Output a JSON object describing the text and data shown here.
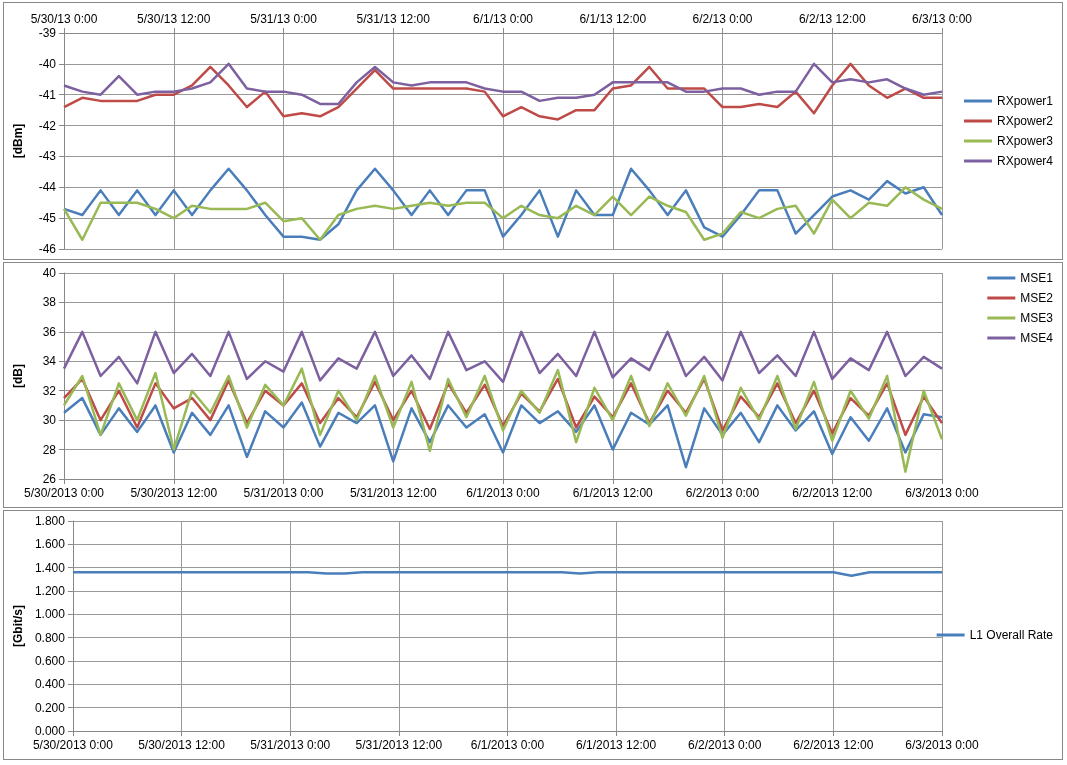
{
  "chart_data": [
    {
      "type": "line",
      "ylabel": "[dBm]",
      "legend": "right",
      "grid": true,
      "x": [
        "2013-05-30T00:00",
        "2013-05-30T02:00",
        "2013-05-30T04:00",
        "2013-05-30T06:00",
        "2013-05-30T08:00",
        "2013-05-30T10:00",
        "2013-05-30T12:00",
        "2013-05-30T14:00",
        "2013-05-30T16:00",
        "2013-05-30T18:00",
        "2013-05-30T20:00",
        "2013-05-30T22:00",
        "2013-05-31T00:00",
        "2013-05-31T02:00",
        "2013-05-31T04:00",
        "2013-05-31T06:00",
        "2013-05-31T08:00",
        "2013-05-31T10:00",
        "2013-05-31T12:00",
        "2013-05-31T14:00",
        "2013-05-31T16:00",
        "2013-05-31T18:00",
        "2013-05-31T20:00",
        "2013-05-31T22:00",
        "2013-06-01T00:00",
        "2013-06-01T02:00",
        "2013-06-01T04:00",
        "2013-06-01T06:00",
        "2013-06-01T08:00",
        "2013-06-01T10:00",
        "2013-06-01T12:00",
        "2013-06-01T14:00",
        "2013-06-01T16:00",
        "2013-06-01T18:00",
        "2013-06-01T20:00",
        "2013-06-01T22:00",
        "2013-06-02T00:00",
        "2013-06-02T02:00",
        "2013-06-02T04:00",
        "2013-06-02T06:00",
        "2013-06-02T08:00",
        "2013-06-02T10:00",
        "2013-06-02T12:00",
        "2013-06-02T14:00",
        "2013-06-02T16:00",
        "2013-06-02T18:00",
        "2013-06-02T20:00",
        "2013-06-02T22:00",
        "2013-06-03T00:00"
      ],
      "x2lim": [
        "2013-05-30T00:00",
        "2013-06-03T00:00"
      ],
      "x2ticks": [
        {
          "value": "2013-05-30T00:00",
          "label": "5/30/13 0:00"
        },
        {
          "value": "2013-05-30T12:00",
          "label": "5/30/13 12:00"
        },
        {
          "value": "2013-05-31T00:00",
          "label": "5/31/13 0:00"
        },
        {
          "value": "2013-05-31T12:00",
          "label": "5/31/13 12:00"
        },
        {
          "value": "2013-06-01T00:00",
          "label": "6/1/13 0:00"
        },
        {
          "value": "2013-06-01T12:00",
          "label": "6/1/13 12:00"
        },
        {
          "value": "2013-06-02T00:00",
          "label": "6/2/13 0:00"
        },
        {
          "value": "2013-06-02T12:00",
          "label": "6/2/13 12:00"
        },
        {
          "value": "2013-06-03T00:00",
          "label": "6/3/13 0:00"
        }
      ],
      "ylim": [
        -46,
        -39
      ],
      "yticks": [
        -46,
        -45,
        -44,
        -43,
        -42,
        -41,
        -40,
        -39
      ],
      "series": [
        {
          "name": "RXpower1",
          "axis": "x2",
          "color": "#4a7ebb",
          "values": [
            -44.7,
            -44.9,
            -44.1,
            -44.9,
            -44.1,
            -44.9,
            -44.1,
            -44.9,
            -44.1,
            -43.4,
            -44.1,
            -44.9,
            -45.6,
            -45.6,
            -45.7,
            -45.2,
            -44.1,
            -43.4,
            -44.1,
            -44.9,
            -44.1,
            -44.9,
            -44.1,
            -44.1,
            -45.6,
            -44.9,
            -44.1,
            -45.6,
            -44.1,
            -44.9,
            -44.9,
            -43.4,
            -44.1,
            -44.9,
            -44.1,
            -45.3,
            -45.6,
            -44.9,
            -44.1,
            -44.1,
            -45.5,
            -44.9,
            -44.3,
            -44.1,
            -44.4,
            -43.8,
            -44.2,
            -44.0,
            -44.9
          ]
        },
        {
          "name": "RXpower2",
          "axis": "x2",
          "color": "#be4b48",
          "values": [
            -41.4,
            -41.1,
            -41.2,
            -41.2,
            -41.2,
            -41.0,
            -41.0,
            -40.7,
            -40.1,
            -40.7,
            -41.4,
            -40.9,
            -41.7,
            -41.6,
            -41.7,
            -41.4,
            -40.8,
            -40.2,
            -40.8,
            -40.8,
            -40.8,
            -40.8,
            -40.8,
            -40.9,
            -41.7,
            -41.4,
            -41.7,
            -41.8,
            -41.5,
            -41.5,
            -40.8,
            -40.7,
            -40.1,
            -40.8,
            -40.8,
            -40.8,
            -41.4,
            -41.4,
            -41.3,
            -41.4,
            -40.9,
            -41.6,
            -40.7,
            -40.0,
            -40.7,
            -41.1,
            -40.8,
            -41.1,
            -41.1
          ]
        },
        {
          "name": "RXpower3",
          "axis": "x2",
          "color": "#98b954",
          "values": [
            -44.7,
            -45.7,
            -44.5,
            -44.5,
            -44.5,
            -44.7,
            -45.0,
            -44.6,
            -44.7,
            -44.7,
            -44.7,
            -44.5,
            -45.1,
            -45.0,
            -45.7,
            -44.9,
            -44.7,
            -44.6,
            -44.7,
            -44.6,
            -44.5,
            -44.6,
            -44.5,
            -44.5,
            -45.0,
            -44.6,
            -44.9,
            -45.0,
            -44.6,
            -44.9,
            -44.3,
            -44.9,
            -44.3,
            -44.6,
            -44.8,
            -45.7,
            -45.5,
            -44.8,
            -45.0,
            -44.7,
            -44.6,
            -45.5,
            -44.4,
            -45.0,
            -44.5,
            -44.6,
            -44.0,
            -44.4,
            -44.7
          ]
        },
        {
          "name": "RXpower4",
          "axis": "x2",
          "color": "#7d60a0",
          "values": [
            -40.7,
            -40.9,
            -41.0,
            -40.4,
            -41.0,
            -40.9,
            -40.9,
            -40.8,
            -40.6,
            -40.0,
            -40.8,
            -40.9,
            -40.9,
            -41.0,
            -41.3,
            -41.3,
            -40.6,
            -40.1,
            -40.6,
            -40.7,
            -40.6,
            -40.6,
            -40.6,
            -40.8,
            -40.9,
            -40.9,
            -41.2,
            -41.1,
            -41.1,
            -41.0,
            -40.6,
            -40.6,
            -40.6,
            -40.6,
            -40.9,
            -40.9,
            -40.8,
            -40.8,
            -41.0,
            -40.9,
            -40.9,
            -40.0,
            -40.6,
            -40.5,
            -40.6,
            -40.5,
            -40.8,
            -41.0,
            -40.9
          ]
        }
      ]
    },
    {
      "type": "line",
      "ylabel": "[dB]",
      "legend": "top right",
      "grid": true,
      "x": [
        "2013-05-30T00:00",
        "2013-05-30T02:00",
        "2013-05-30T04:00",
        "2013-05-30T06:00",
        "2013-05-30T08:00",
        "2013-05-30T10:00",
        "2013-05-30T12:00",
        "2013-05-30T14:00",
        "2013-05-30T16:00",
        "2013-05-30T18:00",
        "2013-05-30T20:00",
        "2013-05-30T22:00",
        "2013-05-31T00:00",
        "2013-05-31T02:00",
        "2013-05-31T04:00",
        "2013-05-31T06:00",
        "2013-05-31T08:00",
        "2013-05-31T10:00",
        "2013-05-31T12:00",
        "2013-05-31T14:00",
        "2013-05-31T16:00",
        "2013-05-31T18:00",
        "2013-05-31T20:00",
        "2013-05-31T22:00",
        "2013-06-01T00:00",
        "2013-06-01T02:00",
        "2013-06-01T04:00",
        "2013-06-01T06:00",
        "2013-06-01T08:00",
        "2013-06-01T10:00",
        "2013-06-01T12:00",
        "2013-06-01T14:00",
        "2013-06-01T16:00",
        "2013-06-01T18:00",
        "2013-06-01T20:00",
        "2013-06-01T22:00",
        "2013-06-02T00:00",
        "2013-06-02T02:00",
        "2013-06-02T04:00",
        "2013-06-02T06:00",
        "2013-06-02T08:00",
        "2013-06-02T10:00",
        "2013-06-02T12:00",
        "2013-06-02T14:00",
        "2013-06-02T16:00",
        "2013-06-02T18:00",
        "2013-06-02T20:00",
        "2013-06-02T22:00",
        "2013-06-03T00:00"
      ],
      "xlim": [
        "2013-05-30T00:00",
        "2013-06-03T00:00"
      ],
      "xticks": [
        {
          "value": "2013-05-30T00:00",
          "label": "5/30/2013 0:00"
        },
        {
          "value": "2013-05-30T12:00",
          "label": "5/30/2013 12:00"
        },
        {
          "value": "2013-05-31T00:00",
          "label": "5/31/2013 0:00"
        },
        {
          "value": "2013-05-31T12:00",
          "label": "5/31/2013 12:00"
        },
        {
          "value": "2013-06-01T00:00",
          "label": "6/1/2013 0:00"
        },
        {
          "value": "2013-06-01T12:00",
          "label": "6/1/2013 12:00"
        },
        {
          "value": "2013-06-02T00:00",
          "label": "6/2/2013 0:00"
        },
        {
          "value": "2013-06-02T12:00",
          "label": "6/2/2013 12:00"
        },
        {
          "value": "2013-06-03T00:00",
          "label": "6/3/2013 0:00"
        }
      ],
      "ylim": [
        26,
        40
      ],
      "yticks": [
        26,
        28,
        30,
        32,
        34,
        36,
        38,
        40
      ],
      "series": [
        {
          "name": "MSE1",
          "color": "#4a7ebb",
          "values": [
            30.5,
            31.5,
            29,
            30.8,
            29.2,
            31,
            27.8,
            30.5,
            29,
            31,
            27.5,
            30.6,
            29.5,
            31.2,
            28.2,
            30.5,
            29.8,
            31,
            27.2,
            30.8,
            28.5,
            31,
            29.5,
            30.4,
            27.8,
            31,
            29.8,
            30.6,
            29.2,
            31,
            28,
            30.5,
            29.7,
            31,
            26.8,
            30.8,
            29,
            30.5,
            28.5,
            31,
            29.3,
            30.6,
            27.7,
            30.2,
            28.6,
            30.8,
            27.8,
            30.4,
            30.2
          ]
        },
        {
          "name": "MSE2",
          "color": "#be4b48",
          "values": [
            31.5,
            32.8,
            30,
            32,
            29.5,
            32.5,
            30.8,
            31.5,
            30,
            32.7,
            29.8,
            32,
            31,
            32.5,
            29.8,
            31.5,
            30.2,
            32.6,
            30,
            32,
            29.4,
            32.5,
            30.5,
            32.4,
            29.6,
            31.8,
            30.6,
            32.8,
            29.5,
            31.6,
            30.2,
            32.5,
            29.8,
            32,
            30.5,
            32.8,
            29.3,
            31.6,
            30.2,
            32.5,
            29.8,
            32,
            29.1,
            31.5,
            30.3,
            32.5,
            29,
            31.6,
            29.8
          ]
        },
        {
          "name": "MSE3",
          "color": "#98b954",
          "values": [
            31,
            33,
            29,
            32.5,
            30,
            33.2,
            28,
            32,
            30.5,
            33,
            29.5,
            32.4,
            31,
            33.5,
            29,
            32,
            30,
            33,
            29.5,
            32.6,
            27.9,
            32.8,
            30.2,
            33,
            29.3,
            32,
            30.5,
            33.4,
            28.5,
            32.2,
            30,
            33,
            29.6,
            32.5,
            30.3,
            33,
            28.8,
            32.2,
            30,
            33,
            29.4,
            32.6,
            28.6,
            32,
            30.1,
            33,
            26.5,
            32,
            28.7
          ]
        },
        {
          "name": "MSE4",
          "color": "#7d60a0",
          "values": [
            33.5,
            36,
            33,
            34.3,
            32.5,
            36,
            33.2,
            34.5,
            33,
            36,
            32.8,
            34,
            33.3,
            36,
            32.7,
            34.2,
            33.5,
            36,
            33,
            34.4,
            32.8,
            36,
            33.4,
            34,
            32.6,
            36,
            33.2,
            34.5,
            33,
            36,
            32.9,
            34.2,
            33.4,
            36,
            33,
            34.3,
            32.7,
            36,
            33.2,
            34.4,
            33,
            36,
            32.8,
            34.2,
            33.4,
            36,
            33,
            34.3,
            33.5
          ]
        }
      ]
    },
    {
      "type": "line",
      "ylabel": "[Gbit/s]",
      "legend": "right",
      "grid": true,
      "x": [
        "2013-05-30T00:00",
        "2013-05-30T02:00",
        "2013-05-30T04:00",
        "2013-05-30T06:00",
        "2013-05-30T08:00",
        "2013-05-30T10:00",
        "2013-05-30T12:00",
        "2013-05-30T14:00",
        "2013-05-30T16:00",
        "2013-05-30T18:00",
        "2013-05-30T20:00",
        "2013-05-30T22:00",
        "2013-05-31T00:00",
        "2013-05-31T02:00",
        "2013-05-31T04:00",
        "2013-05-31T06:00",
        "2013-05-31T08:00",
        "2013-05-31T10:00",
        "2013-05-31T12:00",
        "2013-05-31T14:00",
        "2013-05-31T16:00",
        "2013-05-31T18:00",
        "2013-05-31T20:00",
        "2013-05-31T22:00",
        "2013-06-01T00:00",
        "2013-06-01T02:00",
        "2013-06-01T04:00",
        "2013-06-01T06:00",
        "2013-06-01T08:00",
        "2013-06-01T10:00",
        "2013-06-01T12:00",
        "2013-06-01T14:00",
        "2013-06-01T16:00",
        "2013-06-01T18:00",
        "2013-06-01T20:00",
        "2013-06-01T22:00",
        "2013-06-02T00:00",
        "2013-06-02T02:00",
        "2013-06-02T04:00",
        "2013-06-02T06:00",
        "2013-06-02T08:00",
        "2013-06-02T10:00",
        "2013-06-02T12:00",
        "2013-06-02T14:00",
        "2013-06-02T16:00",
        "2013-06-02T18:00",
        "2013-06-02T20:00",
        "2013-06-02T22:00",
        "2013-06-03T00:00"
      ],
      "xlim": [
        "2013-05-30T00:00",
        "2013-06-03T00:00"
      ],
      "xticks": [
        {
          "value": "2013-05-30T00:00",
          "label": "5/30/2013 0:00"
        },
        {
          "value": "2013-05-30T12:00",
          "label": "5/30/2013 12:00"
        },
        {
          "value": "2013-05-31T00:00",
          "label": "5/31/2013 0:00"
        },
        {
          "value": "2013-05-31T12:00",
          "label": "5/31/2013 12:00"
        },
        {
          "value": "2013-06-01T00:00",
          "label": "6/1/2013 0:00"
        },
        {
          "value": "2013-06-01T12:00",
          "label": "6/1/2013 12:00"
        },
        {
          "value": "2013-06-02T00:00",
          "label": "6/2/2013 0:00"
        },
        {
          "value": "2013-06-02T12:00",
          "label": "6/2/2013 12:00"
        },
        {
          "value": "2013-06-03T00:00",
          "label": "6/3/2013 0:00"
        }
      ],
      "ylim": [
        0,
        1.8
      ],
      "yticks": [
        {
          "value": 0,
          "label": "0.000"
        },
        {
          "value": 0.2,
          "label": "0.200"
        },
        {
          "value": 0.4,
          "label": "0.400"
        },
        {
          "value": 0.6,
          "label": "0.600"
        },
        {
          "value": 0.8,
          "label": "0.800"
        },
        {
          "value": 1.0,
          "label": "1.000"
        },
        {
          "value": 1.2,
          "label": "1.200"
        },
        {
          "value": 1.4,
          "label": "1.400"
        },
        {
          "value": 1.6,
          "label": "1.600"
        },
        {
          "value": 1.8,
          "label": "1.800"
        }
      ],
      "series": [
        {
          "name": "L1 Overall Rate",
          "color": "#4a7ebb",
          "values": [
            1.36,
            1.36,
            1.36,
            1.36,
            1.36,
            1.36,
            1.36,
            1.36,
            1.36,
            1.36,
            1.36,
            1.36,
            1.36,
            1.36,
            1.35,
            1.35,
            1.36,
            1.36,
            1.36,
            1.36,
            1.36,
            1.36,
            1.36,
            1.36,
            1.36,
            1.36,
            1.36,
            1.36,
            1.35,
            1.36,
            1.36,
            1.36,
            1.36,
            1.36,
            1.36,
            1.36,
            1.36,
            1.36,
            1.36,
            1.36,
            1.36,
            1.36,
            1.36,
            1.33,
            1.36,
            1.36,
            1.36,
            1.36,
            1.36
          ]
        }
      ]
    }
  ]
}
